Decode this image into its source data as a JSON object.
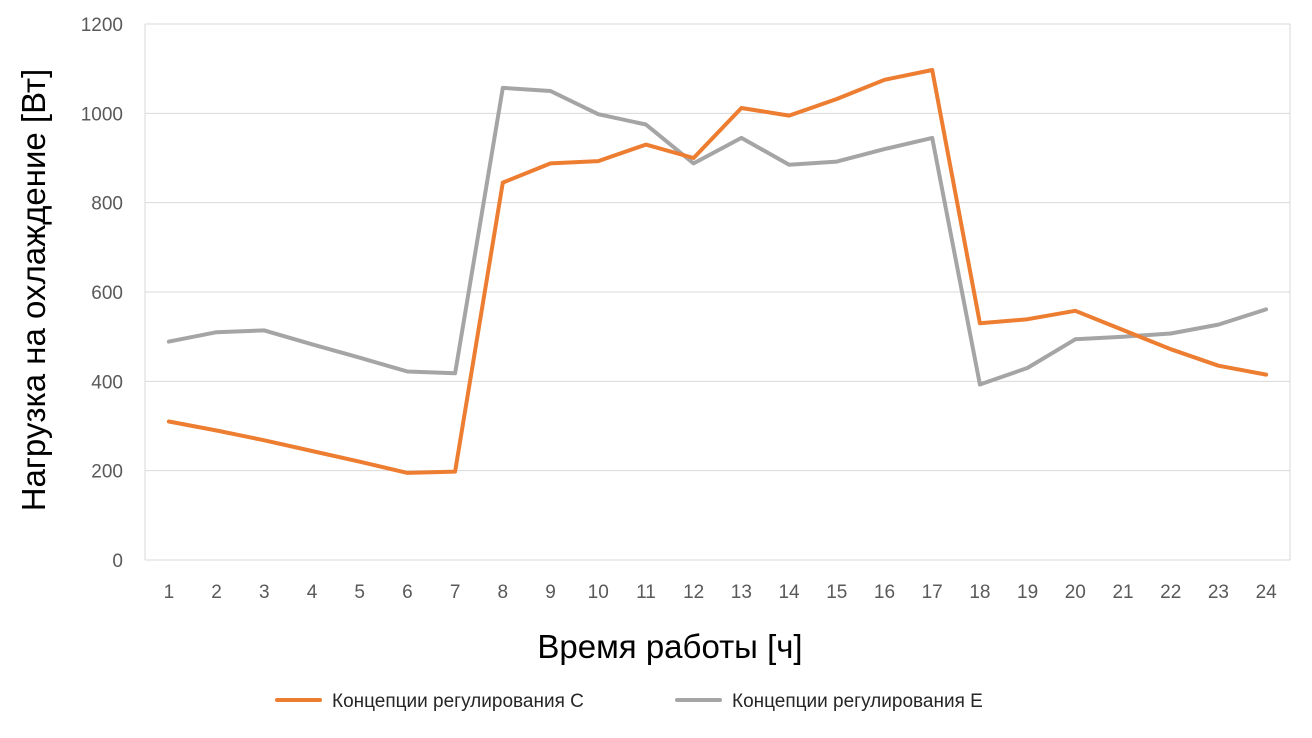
{
  "chart_data": {
    "type": "line",
    "title": "",
    "xlabel": "Время работы [ч]",
    "ylabel": "Нагрузка на охлаждение [Вт]",
    "ylim": [
      0,
      1200
    ],
    "yticks": [
      "0",
      "200",
      "400",
      "600",
      "800",
      "1000",
      "1200"
    ],
    "categories": [
      "1",
      "2",
      "3",
      "4",
      "5",
      "6",
      "7",
      "8",
      "9",
      "10",
      "11",
      "12",
      "13",
      "14",
      "15",
      "16",
      "17",
      "18",
      "19",
      "20",
      "21",
      "22",
      "23",
      "24"
    ],
    "grid": true,
    "legend_position": "bottom",
    "series": [
      {
        "name": "Концепции регулирования C",
        "color": "#ED7D31",
        "values": [
          310,
          290,
          268,
          244,
          220,
          195,
          198,
          845,
          888,
          893,
          930,
          900,
          1012,
          995,
          1032,
          1075,
          1097,
          530,
          539,
          558,
          515,
          472,
          435,
          415
        ]
      },
      {
        "name": "Концепции регулирования E",
        "color": "#A5A5A5",
        "values": [
          489,
          510,
          514,
          483,
          453,
          422,
          418,
          1057,
          1050,
          998,
          975,
          888,
          945,
          885,
          892,
          920,
          945,
          393,
          430,
          494,
          500,
          507,
          527,
          561
        ]
      }
    ]
  }
}
